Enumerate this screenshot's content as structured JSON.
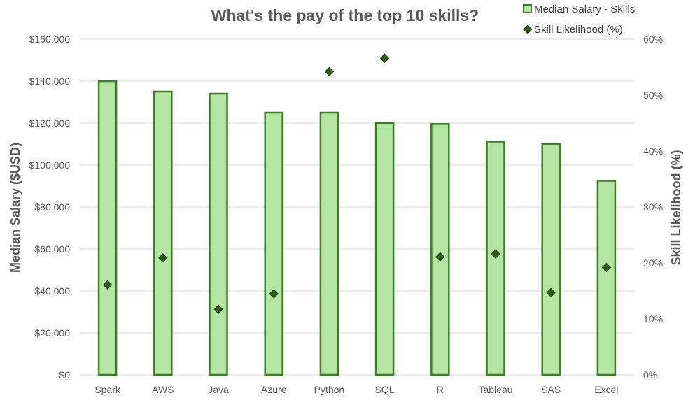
{
  "chart_data": {
    "type": "bar",
    "title": "What's the pay of the top 10 skills?",
    "categories": [
      "Spark",
      "AWS",
      "Java",
      "Azure",
      "Python",
      "SQL",
      "R",
      "Tableau",
      "SAS",
      "Excel"
    ],
    "series": [
      {
        "name": "Median Salary - Skills",
        "type": "bar",
        "axis": "left",
        "values": [
          140000,
          135000,
          134000,
          125000,
          125000,
          120000,
          119550,
          111175,
          110000,
          92500
        ],
        "fill": "#b4e5a2",
        "stroke": "#3a7d22"
      },
      {
        "name": "Skill Likelihood (%)",
        "type": "scatter",
        "axis": "right",
        "marker": "diamond",
        "values": [
          16.1,
          20.9,
          11.7,
          14.5,
          54.2,
          56.6,
          21.1,
          21.6,
          14.7,
          19.2
        ],
        "color": "#2e5a1a"
      }
    ],
    "ylabel": "Median Salary ($USD)",
    "y2label": "Skill Likelihood (%)",
    "ylim": [
      0,
      160000
    ],
    "y2lim": [
      0,
      60
    ],
    "yticks": [
      "$0",
      "$20,000",
      "$40,000",
      "$60,000",
      "$80,000",
      "$100,000",
      "$120,000",
      "$140,000",
      "$160,000"
    ],
    "y2ticks": [
      "0%",
      "10%",
      "20%",
      "30%",
      "40%",
      "50%",
      "60%"
    ],
    "grid": true,
    "legend": "top-right"
  }
}
